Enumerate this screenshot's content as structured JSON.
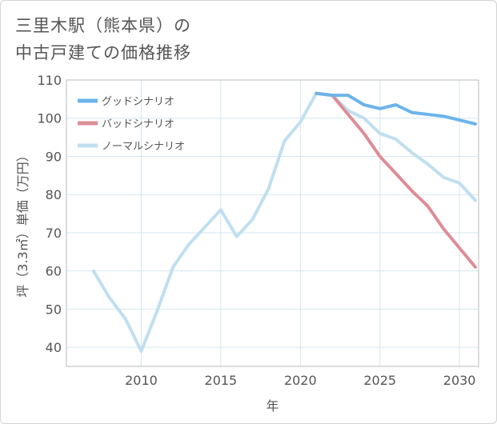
{
  "title": {
    "line1": "三里木駅（熊本県）の",
    "line2": "中古戸建ての価格推移"
  },
  "chart_data": {
    "type": "line",
    "title": "三里木駅（熊本県）の中古戸建ての価格推移",
    "xlabel": "年",
    "ylabel": "坪（3.3㎡）単価（万円）",
    "xlim": [
      2005.3,
      2031.2
    ],
    "ylim": [
      35,
      110
    ],
    "x_ticks": [
      2010,
      2015,
      2020,
      2025,
      2030
    ],
    "y_ticks": [
      40,
      50,
      60,
      70,
      80,
      90,
      100,
      110
    ],
    "x_tick_labels": [
      "2010",
      "2015",
      "2020",
      "2025",
      "2030"
    ],
    "y_tick_labels": [
      "40",
      "50",
      "60",
      "70",
      "80",
      "90",
      "100",
      "110"
    ],
    "grid": true,
    "legend_position": "top-left",
    "series": [
      {
        "name": "グッドシナリオ",
        "color": "#6cb4ec",
        "x": [
          2021,
          2022,
          2023,
          2024,
          2025,
          2026,
          2027,
          2028,
          2029,
          2030,
          2031
        ],
        "y": [
          106.5,
          106.0,
          106.0,
          103.5,
          102.5,
          103.5,
          101.5,
          101.0,
          100.5,
          99.5,
          98.5
        ]
      },
      {
        "name": "バッドシナリオ",
        "color": "#dd8d97",
        "x": [
          2021,
          2022,
          2023,
          2024,
          2025,
          2026,
          2027,
          2028,
          2029,
          2030,
          2031
        ],
        "y": [
          106.5,
          106.0,
          101.0,
          96.0,
          90.0,
          85.5,
          81.0,
          77.0,
          71.0,
          66.0,
          61.0
        ]
      },
      {
        "name": "ノーマルシナリオ",
        "color": "#c0dff0",
        "x": [
          2007,
          2008,
          2009,
          2010,
          2011,
          2012,
          2013,
          2014,
          2015,
          2016,
          2017,
          2018,
          2019,
          2020,
          2021,
          2022,
          2023,
          2024,
          2025,
          2026,
          2027,
          2028,
          2029,
          2030,
          2031
        ],
        "y": [
          60.0,
          53.0,
          47.5,
          39.0,
          49.5,
          61.0,
          67.0,
          71.5,
          76.0,
          69.0,
          73.5,
          81.5,
          94.0,
          99.0,
          106.5,
          106.0,
          102.0,
          100.0,
          96.0,
          94.5,
          91.0,
          88.0,
          84.5,
          83.0,
          78.5
        ]
      }
    ]
  }
}
